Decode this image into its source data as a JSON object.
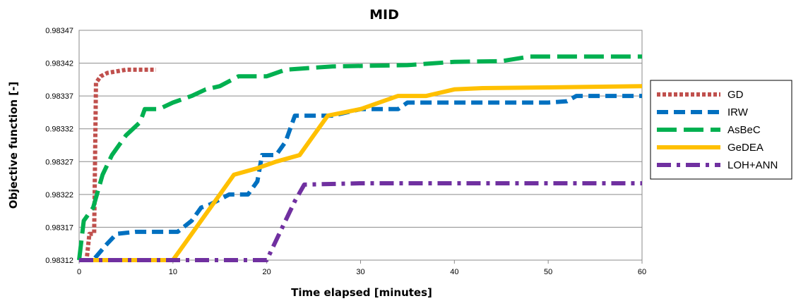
{
  "chart_data": {
    "type": "line",
    "title": "MID",
    "xlabel": "Time elapsed [minutes]",
    "ylabel": "Objective function [-]",
    "xlim": [
      0,
      60
    ],
    "ylim": [
      0.98312,
      0.98347
    ],
    "xticks": [
      0,
      10,
      20,
      30,
      40,
      50,
      60
    ],
    "xtick_labels": [
      "0",
      "10",
      "20",
      "30",
      "40",
      "50",
      "60"
    ],
    "yticks": [
      0.98312,
      0.98317,
      0.98322,
      0.98327,
      0.98332,
      0.98337,
      0.98342,
      0.98347
    ],
    "ytick_labels": [
      "0.98312",
      "0.98317",
      "0.98322",
      "0.98327",
      "0.98332",
      "0.98337",
      "0.98342",
      "0.98347"
    ],
    "grid": true,
    "legend_position": "right",
    "series": [
      {
        "name": "GD",
        "color": "#C0504D",
        "dash": "dotted",
        "points": [
          [
            0,
            0.98312
          ],
          [
            0.8,
            0.98312
          ],
          [
            1.1,
            0.98316
          ],
          [
            1.6,
            0.98316
          ],
          [
            1.8,
            0.98339
          ],
          [
            2.3,
            0.9834
          ],
          [
            3,
            0.983405
          ],
          [
            5,
            0.98341
          ],
          [
            8.2,
            0.98341
          ]
        ]
      },
      {
        "name": "IRW",
        "color": "#0070C0",
        "dash": "dash",
        "points": [
          [
            0,
            0.98312
          ],
          [
            1.5,
            0.98312
          ],
          [
            3,
            0.983145
          ],
          [
            4,
            0.98316
          ],
          [
            6,
            0.983163
          ],
          [
            10.5,
            0.983163
          ],
          [
            12,
            0.98318
          ],
          [
            13,
            0.9832
          ],
          [
            14,
            0.983205
          ],
          [
            16,
            0.98322
          ],
          [
            18,
            0.98322
          ],
          [
            19,
            0.98324
          ],
          [
            19.5,
            0.98328
          ],
          [
            21,
            0.98328
          ],
          [
            22,
            0.9833
          ],
          [
            23,
            0.98334
          ],
          [
            27,
            0.98334
          ],
          [
            30,
            0.98335
          ],
          [
            34,
            0.98335
          ],
          [
            35,
            0.98336
          ],
          [
            50,
            0.98336
          ],
          [
            52,
            0.983362
          ],
          [
            53,
            0.98337
          ],
          [
            60,
            0.98337
          ]
        ]
      },
      {
        "name": "AsBeC",
        "color": "#00B050",
        "dash": "longdash",
        "points": [
          [
            0,
            0.98312
          ],
          [
            0.5,
            0.98318
          ],
          [
            1.5,
            0.9832
          ],
          [
            2.5,
            0.98325
          ],
          [
            3.5,
            0.98328
          ],
          [
            5,
            0.98331
          ],
          [
            6.5,
            0.98333
          ],
          [
            7,
            0.98335
          ],
          [
            8.5,
            0.98335
          ],
          [
            10,
            0.98336
          ],
          [
            12,
            0.98337
          ],
          [
            13.5,
            0.98338
          ],
          [
            15,
            0.983385
          ],
          [
            17,
            0.9834
          ],
          [
            20,
            0.9834
          ],
          [
            22,
            0.98341
          ],
          [
            24,
            0.983412
          ],
          [
            27,
            0.983415
          ],
          [
            35,
            0.983417
          ],
          [
            40,
            0.983422
          ],
          [
            45,
            0.983423
          ],
          [
            48,
            0.98343
          ],
          [
            60,
            0.98343
          ]
        ]
      },
      {
        "name": "GeDEA",
        "color": "#FFC000",
        "dash": "solid",
        "points": [
          [
            0,
            0.98312
          ],
          [
            10,
            0.98312
          ],
          [
            11.5,
            0.98315
          ],
          [
            13,
            0.98318
          ],
          [
            14.5,
            0.98321
          ],
          [
            16.5,
            0.98325
          ],
          [
            19,
            0.98326
          ],
          [
            21,
            0.98327
          ],
          [
            23.5,
            0.98328
          ],
          [
            25,
            0.98331
          ],
          [
            26.5,
            0.98334
          ],
          [
            30,
            0.98335
          ],
          [
            34,
            0.98337
          ],
          [
            37,
            0.98337
          ],
          [
            40,
            0.98338
          ],
          [
            43,
            0.983382
          ],
          [
            50,
            0.983383
          ],
          [
            60,
            0.983385
          ]
        ]
      },
      {
        "name": "LOH+ANN",
        "color": "#7030A0",
        "dash": "dashdot",
        "points": [
          [
            0,
            0.98312
          ],
          [
            20,
            0.98312
          ],
          [
            21,
            0.98315
          ],
          [
            22,
            0.98318
          ],
          [
            23,
            0.98321
          ],
          [
            24,
            0.983235
          ],
          [
            30,
            0.983237
          ],
          [
            60,
            0.983237
          ]
        ]
      }
    ]
  }
}
